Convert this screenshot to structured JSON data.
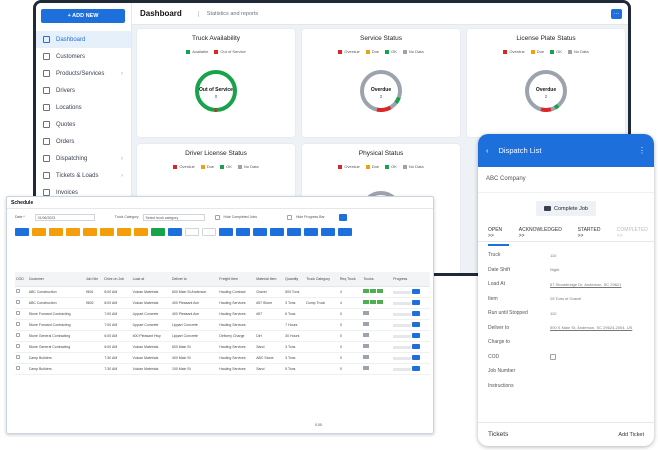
{
  "sidebar": {
    "add_new": "+ ADD NEW",
    "items": [
      "Dashboard",
      "Customers",
      "Products/Services",
      "Drivers",
      "Locations",
      "Quotes",
      "Orders",
      "Dispatching",
      "Tickets & Loads",
      "Invoices"
    ]
  },
  "topbar": {
    "title": "Dashboard",
    "subtitle": "Statistics and reports",
    "menu": "···"
  },
  "cards": {
    "truck": {
      "title": "Truck Availability",
      "legend": [
        "Available",
        "Out of Service"
      ],
      "center": "Out of Service",
      "value": "0"
    },
    "service": {
      "title": "Service Status",
      "legend": [
        "Overdue",
        "Due",
        "OK",
        "No Data"
      ],
      "center": "Overdue",
      "value": "2"
    },
    "plate": {
      "title": "License Plate Status",
      "legend": [
        "Overdue",
        "Due",
        "OK",
        "No Data"
      ],
      "center": "Overdue",
      "value": "2"
    },
    "driver": {
      "title": "Driver License Status",
      "legend": [
        "Overdue",
        "Due",
        "OK",
        "No Data"
      ]
    },
    "physical": {
      "title": "Physical Status",
      "legend": [
        "Overdue",
        "Due",
        "OK",
        "No Data"
      ]
    }
  },
  "colors": {
    "accent": "#1d6fdc",
    "green": "#16a34a",
    "red": "#dc2626",
    "orange": "#f59e0b",
    "gray": "#9ca3af"
  },
  "schedule": {
    "title": "Schedule",
    "date_label": "Date *",
    "date_value": "01/06/2023",
    "truck_label": "Truck Category",
    "truck_placeholder": "Select truck category",
    "hide_completed": "Hide Completed Jobs",
    "hide_progress": "Hide Progress Bar",
    "columns": [
      "COD",
      "Customer",
      "Job Nbr",
      "Drive on Job",
      "Load at",
      "Deliver to",
      "Freight Item",
      "Material Item",
      "Quantity",
      "Truck Category",
      "Req Truck",
      "Trucks",
      "Progress"
    ],
    "rows": [
      [
        "ABC Construction",
        "9601",
        "8:00 AM",
        "Vulcan Materials",
        "600 Main St Anderson",
        "Hauling Contract",
        "Gravel",
        "500 Tons",
        "",
        "4"
      ],
      [
        "ABC Construction",
        "9602",
        "8:00 AM",
        "Vulcan Materials",
        "400 Pleasant Ave",
        "Hauling Services",
        "#57 Stone",
        "3 Tons",
        "Dump Truck",
        "4"
      ],
      [
        "Stone Forward Contracting",
        "",
        "7:00 AM",
        "Lippart Concrete",
        "400 Pleasant Ave",
        "Hauling Services",
        "#57",
        "6 Tons",
        "",
        "0"
      ],
      [
        "Stone Forward Contracting",
        "",
        "7:00 AM",
        "Lippart Concrete",
        "Lippart Concrete",
        "Hauling Services",
        "",
        "7 Hours",
        "",
        "0"
      ],
      [
        "Stone General Contracting",
        "",
        "6:00 AM",
        "400 Pleasant Hwy",
        "Lippart Concrete",
        "Delivery Charge",
        "Dirt",
        "30 Hours",
        "",
        "0"
      ],
      [
        "Stone General Contracting",
        "",
        "6:00 AM",
        "Vulcan Materials",
        "600 Main St",
        "Hauling Services",
        "Sand",
        "3 Tons",
        "",
        "0"
      ],
      [
        "Camp Builders",
        "",
        "7:30 AM",
        "Vulcan Materials",
        "400 Main St",
        "Hauling Services",
        "ABC Stone",
        "3 Tons",
        "",
        "0"
      ],
      [
        "Camp Builders",
        "",
        "7:30 AM",
        "Vulcan Materials",
        "100 Main St",
        "Hauling Services",
        "Sand",
        "5 Tons",
        "",
        "0"
      ]
    ],
    "footer_total": "0.00"
  },
  "dispatch": {
    "title": "Dispatch List",
    "company": "ABC Company",
    "complete_job": "Complete Job",
    "tabs": [
      "OPEN >>",
      "ACKNOWLEDGED >>",
      "STARTED >>",
      "COMPLETED >>"
    ],
    "fields": [
      {
        "k": "Truck",
        "v": "110"
      },
      {
        "k": "Date Shift",
        "v": "Night"
      },
      {
        "k": "Load At",
        "v": "57 Stonebridge Dr, Anderson, SC 29621"
      },
      {
        "k": "Item",
        "v": "25 Tons of Gravel"
      },
      {
        "k": "Run until Stopped",
        "v": "110"
      },
      {
        "k": "Deliver to",
        "v": "500 S Main St, Anderson, SC 29624-2004, US"
      },
      {
        "k": "Charge to",
        "v": ""
      },
      {
        "k": "COD",
        "v": ""
      },
      {
        "k": "Job Number",
        "v": ""
      },
      {
        "k": "Instructions",
        "v": ""
      }
    ],
    "tickets": "Tickets",
    "add_ticket": "Add Ticket"
  }
}
